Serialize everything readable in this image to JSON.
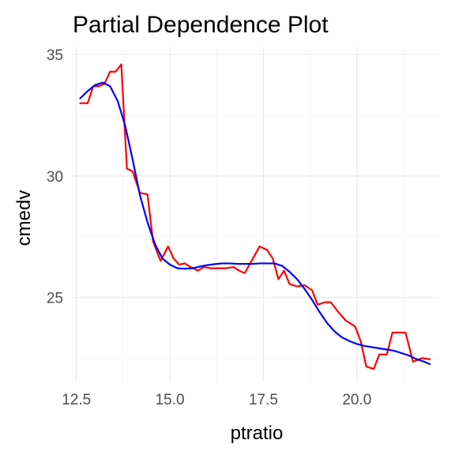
{
  "chart_data": {
    "type": "line",
    "title": "Partial Dependence Plot",
    "xlabel": "ptratio",
    "ylabel": "cmedv",
    "xlim": [
      12.4,
      22.2
    ],
    "ylim": [
      21.5,
      35.3
    ],
    "x_ticks": [
      12.5,
      15.0,
      17.5,
      20.0
    ],
    "x_tick_labels": [
      "12.5",
      "15.0",
      "17.5",
      "20.0"
    ],
    "y_ticks": [
      25,
      30,
      35
    ],
    "y_tick_labels": [
      "25",
      "30",
      "35"
    ],
    "grid": true,
    "legend": "none",
    "colors": {
      "pdp": "#ff0000",
      "smooth": "#0000ff"
    },
    "series": [
      {
        "color": "#ff0000",
        "x": [
          12.6,
          12.8,
          12.95,
          13.1,
          13.25,
          13.4,
          13.55,
          13.7,
          13.85,
          14.0,
          14.2,
          14.4,
          14.55,
          14.75,
          14.95,
          15.1,
          15.25,
          15.4,
          15.55,
          15.75,
          15.9,
          16.1,
          16.3,
          16.5,
          16.7,
          16.85,
          17.0,
          17.2,
          17.4,
          17.6,
          17.75,
          17.9,
          18.05,
          18.2,
          18.4,
          18.6,
          18.8,
          18.95,
          19.15,
          19.3,
          19.5,
          19.7,
          19.95,
          20.1,
          20.25,
          20.45,
          20.6,
          20.8,
          20.95,
          21.15,
          21.3,
          21.5,
          21.75,
          21.95
        ],
        "y": [
          33.0,
          33.0,
          33.7,
          33.7,
          33.8,
          34.3,
          34.3,
          34.6,
          30.3,
          30.2,
          29.3,
          29.25,
          27.3,
          26.5,
          27.1,
          26.6,
          26.35,
          26.4,
          26.25,
          26.1,
          26.25,
          26.2,
          26.2,
          26.2,
          26.25,
          26.1,
          26.0,
          26.55,
          27.1,
          26.95,
          26.6,
          25.75,
          26.1,
          25.55,
          25.45,
          25.5,
          25.3,
          24.7,
          24.8,
          24.8,
          24.4,
          24.05,
          23.8,
          23.2,
          22.15,
          22.05,
          22.65,
          22.65,
          23.55,
          23.55,
          23.55,
          22.35,
          22.5,
          22.45
        ]
      },
      {
        "color": "#0000ff",
        "x": [
          12.6,
          12.8,
          13.0,
          13.2,
          13.4,
          13.6,
          13.8,
          14.0,
          14.2,
          14.4,
          14.6,
          14.8,
          15.0,
          15.2,
          15.4,
          15.6,
          15.8,
          16.0,
          16.2,
          16.4,
          16.6,
          16.8,
          17.0,
          17.2,
          17.4,
          17.6,
          17.8,
          18.0,
          18.2,
          18.4,
          18.6,
          18.8,
          19.0,
          19.2,
          19.4,
          19.6,
          19.8,
          20.0,
          20.2,
          20.4,
          20.6,
          20.8,
          21.0,
          21.2,
          21.4,
          21.6,
          21.8,
          21.95
        ],
        "y": [
          33.2,
          33.5,
          33.75,
          33.85,
          33.7,
          33.1,
          32.1,
          30.7,
          29.2,
          28.1,
          27.2,
          26.6,
          26.35,
          26.2,
          26.18,
          26.2,
          26.27,
          26.33,
          26.37,
          26.4,
          26.4,
          26.38,
          26.38,
          26.38,
          26.4,
          26.4,
          26.4,
          26.3,
          26.05,
          25.75,
          25.35,
          24.9,
          24.4,
          23.95,
          23.6,
          23.35,
          23.2,
          23.08,
          23.0,
          22.95,
          22.9,
          22.85,
          22.8,
          22.7,
          22.6,
          22.45,
          22.35,
          22.25
        ]
      }
    ]
  }
}
